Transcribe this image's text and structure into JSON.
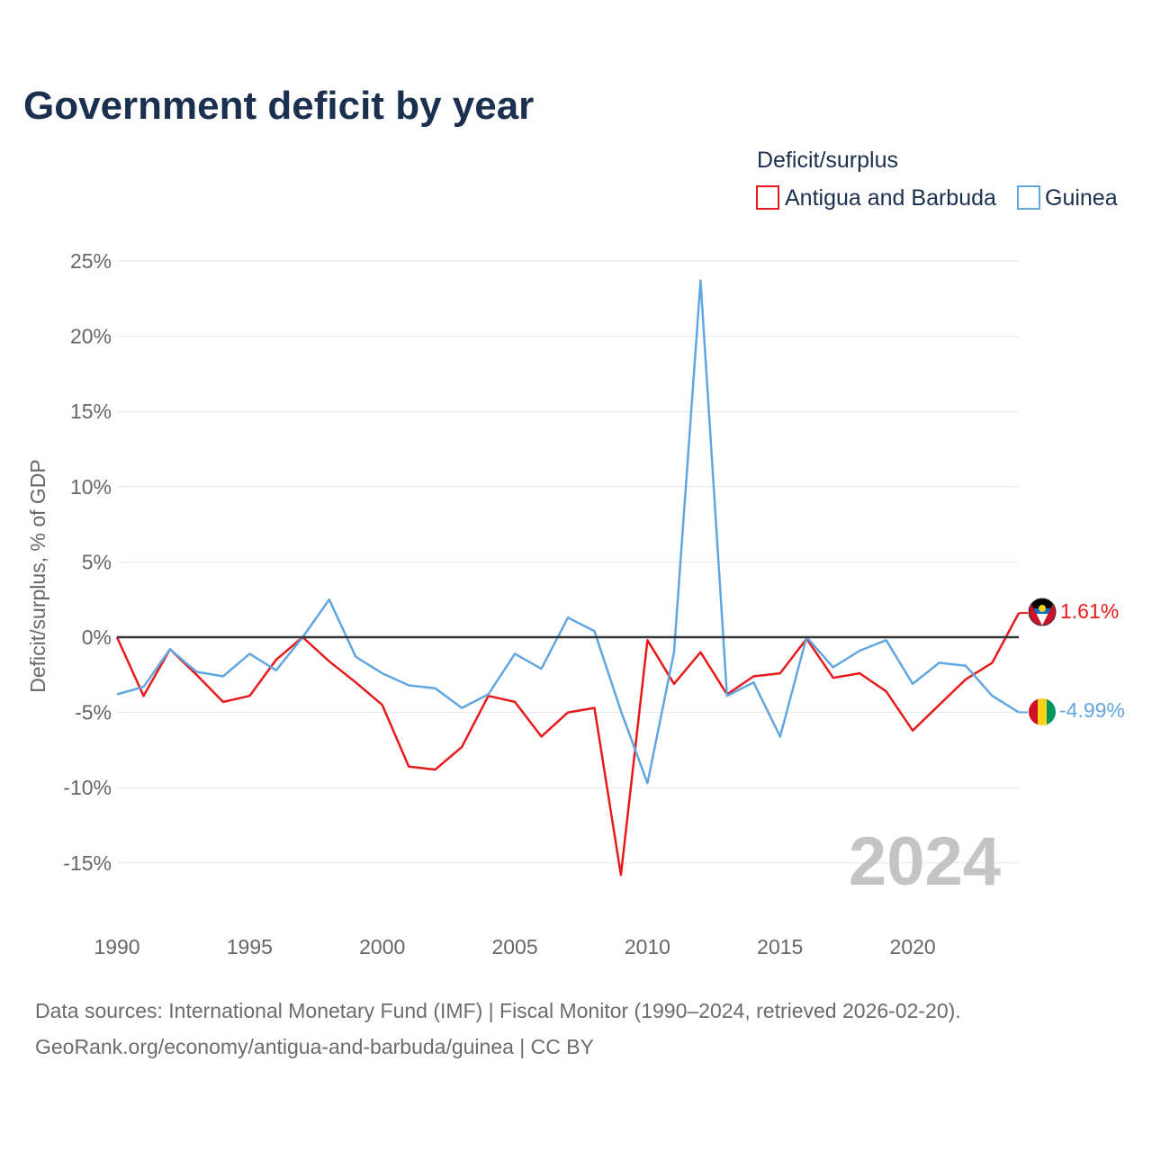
{
  "title": "Government deficit by year",
  "legend": {
    "title": "Deficit/surplus",
    "items": [
      {
        "label": "Antigua and Barbuda",
        "color": "#e8191b"
      },
      {
        "label": "Guinea",
        "color": "#62a6e0"
      }
    ]
  },
  "watermark_year": "2024",
  "footer": {
    "sources": "Data sources: International Monetary Fund (IMF) | Fiscal Monitor (1990–2024, retrieved 2026-02-20).",
    "link": "GeoRank.org/economy/antigua-and-barbuda/guinea | CC BY"
  },
  "chart_data": {
    "type": "line",
    "title": "Government deficit by year",
    "xlabel": "",
    "ylabel": "Deficit/surplus, % of GDP",
    "x": [
      1990,
      1991,
      1992,
      1993,
      1994,
      1995,
      1996,
      1997,
      1998,
      1999,
      2000,
      2001,
      2002,
      2003,
      2004,
      2005,
      2006,
      2007,
      2008,
      2009,
      2010,
      2011,
      2012,
      2013,
      2014,
      2015,
      2016,
      2017,
      2018,
      2019,
      2020,
      2021,
      2022,
      2023,
      2024
    ],
    "xlim": [
      1990,
      2024
    ],
    "x_ticks": [
      1990,
      1995,
      2000,
      2005,
      2010,
      2015,
      2020
    ],
    "x_tick_labels": [
      "1990",
      "1995",
      "2000",
      "2005",
      "2010",
      "2015",
      "2020"
    ],
    "ylim": [
      -16,
      25
    ],
    "y_ticks": [
      25,
      20,
      15,
      10,
      5,
      0,
      -5,
      -10,
      -15
    ],
    "y_tick_labels": [
      "25%",
      "20%",
      "15%",
      "10%",
      "5%",
      "0%",
      "-5%",
      "-10%",
      "-15%"
    ],
    "grid": true,
    "series": [
      {
        "name": "Antigua and Barbuda",
        "color": "#e8191b",
        "end_label": "1.61%",
        "flag": "antigua-and-barbuda-flag",
        "values": [
          0.0,
          -3.9,
          -0.8,
          -2.5,
          -4.3,
          -3.9,
          -1.5,
          0.0,
          -1.6,
          -3.0,
          -4.5,
          -8.6,
          -8.8,
          -7.3,
          -3.9,
          -4.3,
          -6.6,
          -5.0,
          -4.7,
          -15.8,
          -0.2,
          -3.1,
          -1.0,
          -3.8,
          -2.6,
          -2.4,
          -0.1,
          -2.7,
          -2.4,
          -3.6,
          -6.2,
          -4.5,
          -2.8,
          -1.7,
          1.61
        ]
      },
      {
        "name": "Guinea",
        "color": "#62a6e0",
        "end_label": "-4.99%",
        "flag": "guinea-flag",
        "values": [
          -3.8,
          -3.3,
          -0.8,
          -2.3,
          -2.6,
          -1.1,
          -2.2,
          0.0,
          2.5,
          -1.3,
          -2.4,
          -3.2,
          -3.4,
          -4.7,
          -3.8,
          -1.1,
          -2.1,
          1.3,
          0.4,
          -4.9,
          -9.7,
          -1.0,
          23.7,
          -3.9,
          -3.0,
          -6.6,
          0.0,
          -2.0,
          -0.9,
          -0.2,
          -3.1,
          -1.7,
          -1.9,
          -3.9,
          -4.99
        ]
      }
    ]
  }
}
